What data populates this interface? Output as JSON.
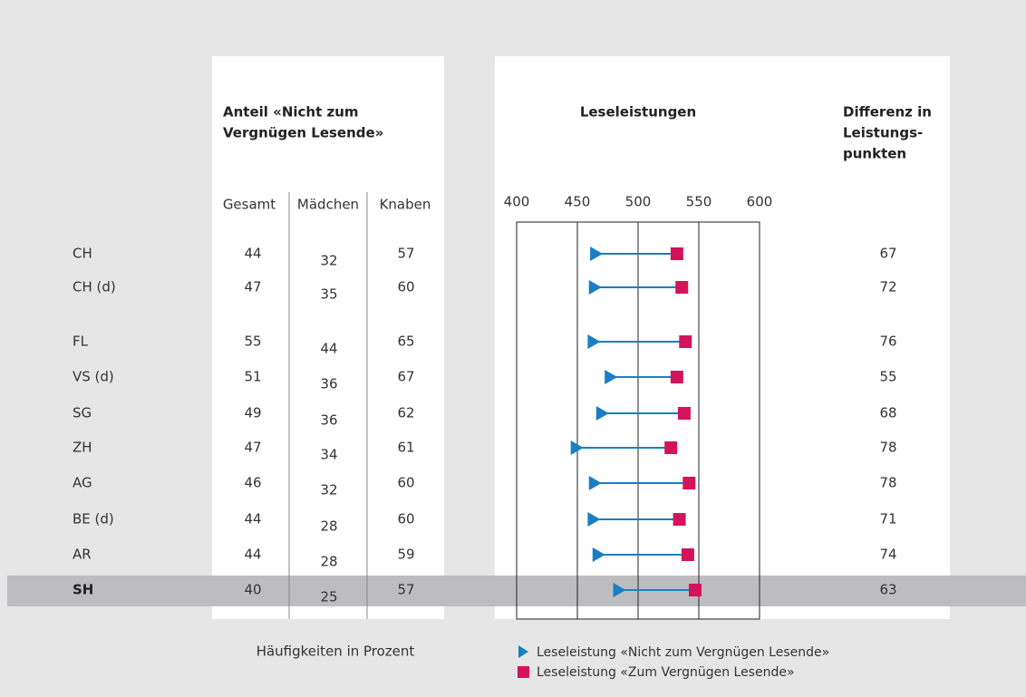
{
  "chart_data": {
    "type": "dumbbell",
    "share_title": [
      "Anteil «Nicht zum",
      "Vergnügen Lesende»"
    ],
    "title": "Leseleistungen",
    "diff_title": [
      "Differenz in",
      "Leistungs-",
      "punkten"
    ],
    "columns": [
      "Gesamt",
      "Mädchen",
      "Knaben"
    ],
    "categories": [
      "CH",
      "CH (d)",
      "FL",
      "VS (d)",
      "SG",
      "ZH",
      "AG",
      "BE (d)",
      "AR",
      "SH"
    ],
    "highlight_index": 9,
    "table": {
      "gesamt": [
        44,
        47,
        55,
        51,
        49,
        47,
        46,
        44,
        44,
        40
      ],
      "maedchen": [
        32,
        35,
        44,
        36,
        36,
        34,
        32,
        28,
        28,
        25
      ],
      "knaben": [
        57,
        60,
        65,
        67,
        62,
        61,
        60,
        60,
        59,
        57
      ]
    },
    "series": [
      {
        "name": "Leseleistung «Nicht zum Vergnügen Lesende»",
        "color": "#1a7ec2",
        "values": [
          465,
          464,
          463,
          477,
          470,
          449,
          464,
          463,
          467,
          484
        ]
      },
      {
        "name": "Leseleistung «Zum Vergnügen Lesende»",
        "color": "#d4145a",
        "values": [
          532,
          536,
          539,
          532,
          538,
          527,
          542,
          534,
          541,
          547
        ]
      }
    ],
    "differences": [
      67,
      72,
      76,
      55,
      68,
      78,
      78,
      71,
      74,
      63
    ],
    "xlim": [
      400,
      600
    ],
    "xticks": [
      400,
      450,
      500,
      550,
      600
    ],
    "footnote": "Häufigkeiten in Prozent"
  }
}
